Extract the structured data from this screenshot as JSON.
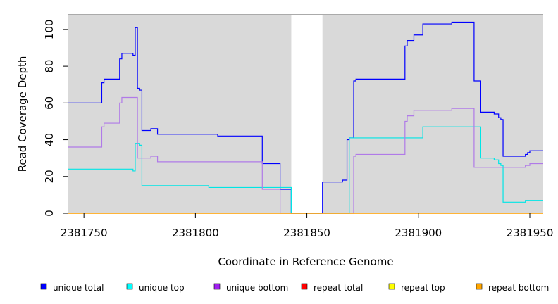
{
  "chart_data": {
    "type": "line",
    "xlabel": "Coordinate in Reference Genome",
    "ylabel": "Read Coverage Depth",
    "xlim": [
      2381743,
      2381956
    ],
    "ylim": [
      0,
      108
    ],
    "x_ticks": [
      2381750,
      2381800,
      2381850,
      2381900,
      2381950
    ],
    "y_ticks": [
      0,
      20,
      40,
      60,
      80,
      100
    ],
    "shaded_regions": [
      [
        2381743,
        2381843
      ],
      [
        2381857,
        2381956
      ]
    ],
    "shade_color": "#d9d9d9",
    "series": [
      {
        "name": "unique total",
        "color": "#0000ff",
        "step": true,
        "points": [
          [
            2381743,
            60
          ],
          [
            2381752,
            60
          ],
          [
            2381758,
            60
          ],
          [
            2381758,
            71
          ],
          [
            2381759,
            71
          ],
          [
            2381759,
            73
          ],
          [
            2381766,
            73
          ],
          [
            2381766,
            84
          ],
          [
            2381767,
            84
          ],
          [
            2381767,
            87
          ],
          [
            2381772,
            87
          ],
          [
            2381772,
            86
          ],
          [
            2381773,
            86
          ],
          [
            2381773,
            101
          ],
          [
            2381774,
            101
          ],
          [
            2381774,
            68
          ],
          [
            2381775,
            68
          ],
          [
            2381775,
            67
          ],
          [
            2381776,
            67
          ],
          [
            2381776,
            45
          ],
          [
            2381780,
            45
          ],
          [
            2381780,
            46
          ],
          [
            2381783,
            46
          ],
          [
            2381783,
            43
          ],
          [
            2381791,
            43
          ],
          [
            2381810,
            43
          ],
          [
            2381810,
            42
          ],
          [
            2381830,
            42
          ],
          [
            2381830,
            27
          ],
          [
            2381838,
            27
          ],
          [
            2381838,
            13
          ],
          [
            2381843,
            13
          ],
          [
            2381843,
            0
          ],
          [
            2381850,
            0
          ],
          [
            2381857,
            0
          ],
          [
            2381857,
            17
          ],
          [
            2381866,
            17
          ],
          [
            2381866,
            18
          ],
          [
            2381868,
            18
          ],
          [
            2381868,
            40
          ],
          [
            2381869,
            40
          ],
          [
            2381869,
            41
          ],
          [
            2381871,
            41
          ],
          [
            2381871,
            72
          ],
          [
            2381872,
            72
          ],
          [
            2381872,
            73
          ],
          [
            2381894,
            73
          ],
          [
            2381894,
            91
          ],
          [
            2381895,
            91
          ],
          [
            2381895,
            94
          ],
          [
            2381898,
            94
          ],
          [
            2381898,
            97
          ],
          [
            2381902,
            97
          ],
          [
            2381902,
            103
          ],
          [
            2381915,
            103
          ],
          [
            2381915,
            104
          ],
          [
            2381925,
            104
          ],
          [
            2381925,
            72
          ],
          [
            2381928,
            72
          ],
          [
            2381928,
            55
          ],
          [
            2381934,
            55
          ],
          [
            2381934,
            54
          ],
          [
            2381936,
            54
          ],
          [
            2381936,
            52
          ],
          [
            2381937,
            52
          ],
          [
            2381937,
            51
          ],
          [
            2381938,
            51
          ],
          [
            2381938,
            31
          ],
          [
            2381948,
            31
          ],
          [
            2381948,
            32
          ],
          [
            2381949,
            32
          ],
          [
            2381949,
            33
          ],
          [
            2381950,
            33
          ],
          [
            2381950,
            34
          ],
          [
            2381956,
            34
          ]
        ]
      },
      {
        "name": "unique top",
        "color": "#00e5e5",
        "step": true,
        "points": [
          [
            2381743,
            24
          ],
          [
            2381772,
            24
          ],
          [
            2381772,
            23
          ],
          [
            2381773,
            23
          ],
          [
            2381773,
            38
          ],
          [
            2381775,
            38
          ],
          [
            2381775,
            37
          ],
          [
            2381776,
            37
          ],
          [
            2381776,
            15
          ],
          [
            2381806,
            15
          ],
          [
            2381806,
            14
          ],
          [
            2381843,
            14
          ],
          [
            2381843,
            0
          ],
          [
            2381869,
            0
          ],
          [
            2381869,
            41
          ],
          [
            2381902,
            41
          ],
          [
            2381902,
            47
          ],
          [
            2381928,
            47
          ],
          [
            2381928,
            30
          ],
          [
            2381934,
            30
          ],
          [
            2381934,
            29
          ],
          [
            2381936,
            29
          ],
          [
            2381936,
            27
          ],
          [
            2381937,
            27
          ],
          [
            2381937,
            26
          ],
          [
            2381938,
            26
          ],
          [
            2381938,
            6
          ],
          [
            2381948,
            6
          ],
          [
            2381948,
            7
          ],
          [
            2381956,
            7
          ]
        ]
      },
      {
        "name": "unique bottom",
        "color": "#b07ae8",
        "step": true,
        "points": [
          [
            2381743,
            36
          ],
          [
            2381758,
            36
          ],
          [
            2381758,
            47
          ],
          [
            2381759,
            47
          ],
          [
            2381759,
            49
          ],
          [
            2381766,
            49
          ],
          [
            2381766,
            60
          ],
          [
            2381767,
            60
          ],
          [
            2381767,
            63
          ],
          [
            2381774,
            63
          ],
          [
            2381774,
            30
          ],
          [
            2381780,
            30
          ],
          [
            2381780,
            31
          ],
          [
            2381783,
            31
          ],
          [
            2381783,
            28
          ],
          [
            2381830,
            28
          ],
          [
            2381830,
            13
          ],
          [
            2381838,
            13
          ],
          [
            2381838,
            0
          ],
          [
            2381871,
            0
          ],
          [
            2381871,
            31
          ],
          [
            2381872,
            31
          ],
          [
            2381872,
            32
          ],
          [
            2381894,
            32
          ],
          [
            2381894,
            50
          ],
          [
            2381895,
            50
          ],
          [
            2381895,
            53
          ],
          [
            2381898,
            53
          ],
          [
            2381898,
            56
          ],
          [
            2381915,
            56
          ],
          [
            2381915,
            57
          ],
          [
            2381925,
            57
          ],
          [
            2381925,
            25
          ],
          [
            2381948,
            25
          ],
          [
            2381948,
            26
          ],
          [
            2381950,
            26
          ],
          [
            2381950,
            27
          ],
          [
            2381956,
            27
          ]
        ]
      },
      {
        "name": "repeat total",
        "color": "#ff0000",
        "step": true,
        "points": [
          [
            2381743,
            0
          ],
          [
            2381956,
            0
          ]
        ]
      },
      {
        "name": "repeat top",
        "color": "#ffff00",
        "step": true,
        "points": [
          [
            2381743,
            0
          ],
          [
            2381956,
            0
          ]
        ]
      },
      {
        "name": "repeat bottom",
        "color": "#ffa500",
        "step": true,
        "points": [
          [
            2381743,
            0
          ],
          [
            2381956,
            0
          ]
        ]
      }
    ],
    "legend": {
      "placement": "bottom",
      "items": [
        {
          "label": "unique total",
          "color": "#0000ff"
        },
        {
          "label": "unique top",
          "color": "#00ffff"
        },
        {
          "label": "unique bottom",
          "color": "#a020f0"
        },
        {
          "label": "repeat total",
          "color": "#ff0000"
        },
        {
          "label": "repeat top",
          "color": "#ffff00"
        },
        {
          "label": "repeat bottom",
          "color": "#ffa500"
        }
      ]
    }
  }
}
